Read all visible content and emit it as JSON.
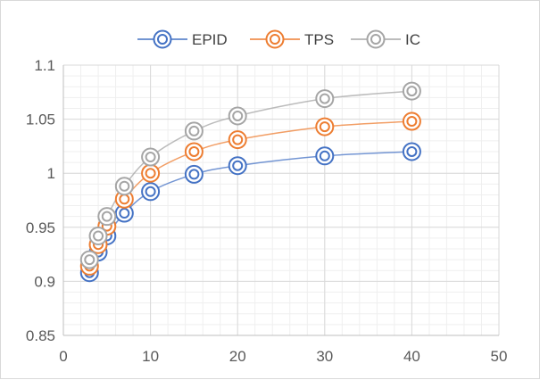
{
  "chart_data": {
    "type": "scatter",
    "title": "",
    "xlabel": "",
    "ylabel": "",
    "xlim": [
      0,
      50
    ],
    "ylim": [
      0.85,
      1.1
    ],
    "x_ticks": [
      0,
      10,
      20,
      30,
      40,
      50
    ],
    "y_ticks": [
      0.85,
      0.9,
      0.95,
      1,
      1.05,
      1.1
    ],
    "x_tick_labels": [
      "0",
      "10",
      "20",
      "30",
      "40",
      "50"
    ],
    "y_tick_labels": [
      "0.85",
      "0.9",
      "0.95",
      "1",
      "1.05",
      "1.1"
    ],
    "grid": true,
    "minor_grid": true,
    "legend_position": "top",
    "markers": "double-circle",
    "lines": "smooth",
    "x": [
      3,
      4,
      5,
      7,
      10,
      15,
      20,
      30,
      40
    ],
    "series": [
      {
        "name": "EPID",
        "color": "#4472C4",
        "values": [
          0.908,
          0.927,
          0.942,
          0.963,
          0.983,
          0.999,
          1.007,
          1.016,
          1.02
        ]
      },
      {
        "name": "TPS",
        "color": "#ED7D31",
        "values": [
          0.914,
          0.934,
          0.951,
          0.976,
          1.0,
          1.02,
          1.031,
          1.043,
          1.048
        ]
      },
      {
        "name": "IC",
        "color": "#A5A5A5",
        "values": [
          0.92,
          0.942,
          0.96,
          0.988,
          1.015,
          1.039,
          1.053,
          1.069,
          1.076
        ]
      }
    ]
  }
}
